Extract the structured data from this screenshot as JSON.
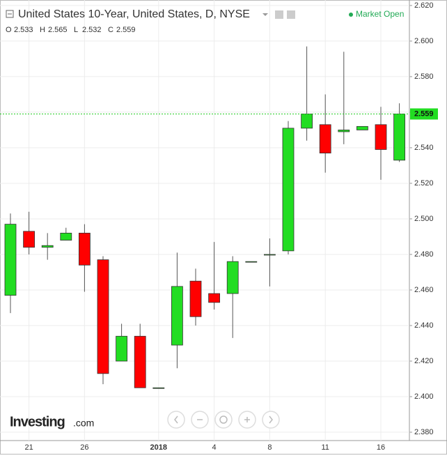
{
  "chart_data": {
    "type": "candlestick",
    "title": "United States 10-Year, United States, D, NYSE",
    "status": "Market Open",
    "ohlc_labels": [
      "O",
      "H",
      "L",
      "C"
    ],
    "logo": "Investing",
    "logo_suffix": ".com",
    "categories": [
      null,
      "21",
      null,
      null,
      "26",
      null,
      null,
      null,
      "2018",
      null,
      null,
      "4",
      null,
      null,
      "8",
      null,
      null,
      "11",
      null,
      null,
      "16",
      null
    ],
    "open": [
      2.457,
      2.493,
      2.484,
      2.488,
      2.492,
      2.477,
      2.42,
      2.434,
      2.405,
      2.429,
      2.465,
      2.458,
      2.458,
      2.476,
      2.48,
      2.482,
      2.551,
      2.553,
      2.549,
      2.55,
      2.553,
      2.533
    ],
    "high": [
      2.503,
      2.504,
      2.492,
      2.495,
      2.497,
      2.479,
      2.441,
      2.441,
      2.405,
      2.481,
      2.472,
      2.487,
      2.479,
      2.476,
      2.489,
      2.555,
      2.597,
      2.57,
      2.594,
      2.552,
      2.563,
      2.565
    ],
    "low": [
      2.447,
      2.48,
      2.477,
      2.488,
      2.459,
      2.407,
      2.42,
      2.405,
      2.405,
      2.416,
      2.44,
      2.449,
      2.433,
      2.476,
      2.462,
      2.48,
      2.544,
      2.526,
      2.542,
      2.55,
      2.522,
      2.532
    ],
    "close": [
      2.497,
      2.484,
      2.485,
      2.492,
      2.474,
      2.413,
      2.434,
      2.405,
      2.405,
      2.462,
      2.445,
      2.453,
      2.476,
      2.476,
      2.48,
      2.551,
      2.559,
      2.537,
      2.55,
      2.552,
      2.539,
      2.559
    ],
    "up_color": "#22dd22",
    "down_color": "#ff0000",
    "wick_color": "#555555",
    "ylim": [
      2.3753,
      2.6231
    ],
    "yticks": [
      {
        "value": 2.38,
        "label": "2.380"
      },
      {
        "value": 2.4,
        "label": "2.400"
      },
      {
        "value": 2.42,
        "label": "2.420"
      },
      {
        "value": 2.44,
        "label": "2.440"
      },
      {
        "value": 2.46,
        "label": "2.460"
      },
      {
        "value": 2.48,
        "label": "2.480"
      },
      {
        "value": 2.5,
        "label": "2.500"
      },
      {
        "value": 2.52,
        "label": "2.520"
      },
      {
        "value": 2.54,
        "label": "2.540"
      },
      {
        "value": 2.56,
        "label": "2.560"
      },
      {
        "value": 2.58,
        "label": "2.580"
      },
      {
        "value": 2.6,
        "label": "2.600"
      },
      {
        "value": 2.62,
        "label": "2.620"
      }
    ],
    "grid": true
  }
}
